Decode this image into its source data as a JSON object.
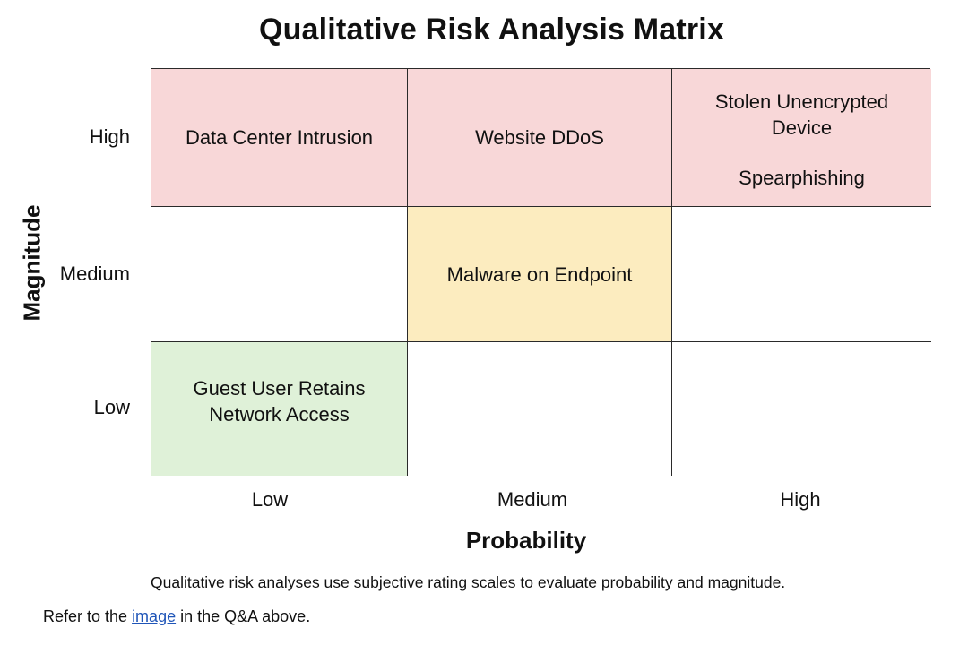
{
  "title": "Qualitative Risk Analysis Matrix",
  "axes": {
    "x_title": "Probability",
    "y_title": "Magnitude",
    "x_levels": [
      "Low",
      "Medium",
      "High"
    ],
    "y_levels": [
      "High",
      "Medium",
      "Low"
    ]
  },
  "matrix": {
    "rows": [
      {
        "magnitude": "High",
        "cells": [
          {
            "probability": "Low",
            "color": "#f8d7d8",
            "items": [
              "Data Center Intrusion"
            ]
          },
          {
            "probability": "Medium",
            "color": "#f8d7d8",
            "items": [
              "Website DDoS"
            ]
          },
          {
            "probability": "High",
            "color": "#f8d7d8",
            "items": [
              "Stolen Unencrypted\nDevice",
              "Spearphishing"
            ]
          }
        ]
      },
      {
        "magnitude": "Medium",
        "cells": [
          {
            "probability": "Low",
            "color": "#ffffff",
            "items": []
          },
          {
            "probability": "Medium",
            "color": "#fcecbf",
            "items": [
              "Malware on Endpoint"
            ]
          },
          {
            "probability": "High",
            "color": "#ffffff",
            "items": []
          }
        ]
      },
      {
        "magnitude": "Low",
        "cells": [
          {
            "probability": "Low",
            "color": "#dff1d8",
            "items": [
              "Guest User Retains\nNetwork Access"
            ]
          },
          {
            "probability": "Medium",
            "color": "#ffffff",
            "items": []
          },
          {
            "probability": "High",
            "color": "#ffffff",
            "items": []
          }
        ]
      }
    ]
  },
  "caption": "Qualitative risk analyses use subjective rating scales to evaluate probability and magnitude.",
  "footer": {
    "prefix": "Refer to the ",
    "link_text": "image",
    "suffix": " in the Q&A above."
  }
}
